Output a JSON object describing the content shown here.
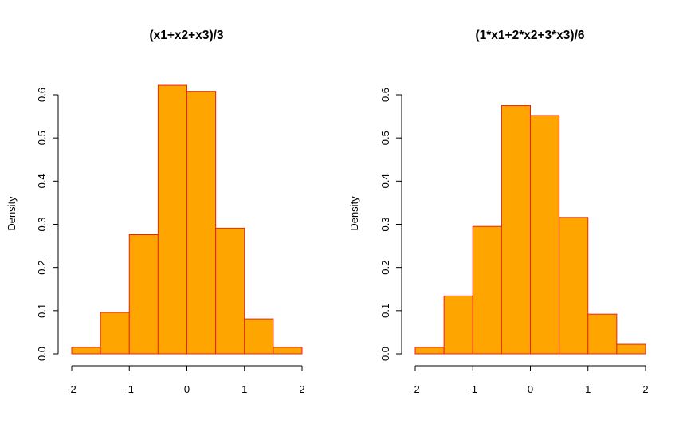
{
  "colors": {
    "bar_fill": "#FFA500",
    "bar_stroke": "#E8231D",
    "axis": "#000000"
  },
  "chart_data": [
    {
      "type": "bar",
      "title": "(x1+x2+x3)/3",
      "xlabel": "",
      "ylabel": "Density",
      "bin_edges": [
        -2,
        -1.5,
        -1,
        -0.5,
        0,
        0.5,
        1,
        1.5,
        2
      ],
      "values": [
        0.015,
        0.096,
        0.276,
        0.622,
        0.608,
        0.291,
        0.081,
        0.015
      ],
      "xlim": [
        -2,
        2
      ],
      "ylim": [
        0,
        0.6
      ],
      "xticks": [
        "-2",
        "-1",
        "0",
        "1",
        "2"
      ],
      "yticks": [
        "0.0",
        "0.1",
        "0.2",
        "0.3",
        "0.4",
        "0.5",
        "0.6"
      ],
      "grid": false,
      "legend": "none"
    },
    {
      "type": "bar",
      "title": "(1*x1+2*x2+3*x3)/6",
      "xlabel": "",
      "ylabel": "Density",
      "bin_edges": [
        -2,
        -1.5,
        -1,
        -0.5,
        0,
        0.5,
        1,
        1.5,
        2
      ],
      "values": [
        0.015,
        0.134,
        0.295,
        0.575,
        0.552,
        0.316,
        0.092,
        0.022
      ],
      "xlim": [
        -2,
        2
      ],
      "ylim": [
        0,
        0.6
      ],
      "xticks": [
        "-2",
        "-1",
        "0",
        "1",
        "2"
      ],
      "yticks": [
        "0.0",
        "0.1",
        "0.2",
        "0.3",
        "0.4",
        "0.5",
        "0.6"
      ],
      "grid": false,
      "legend": "none"
    }
  ]
}
